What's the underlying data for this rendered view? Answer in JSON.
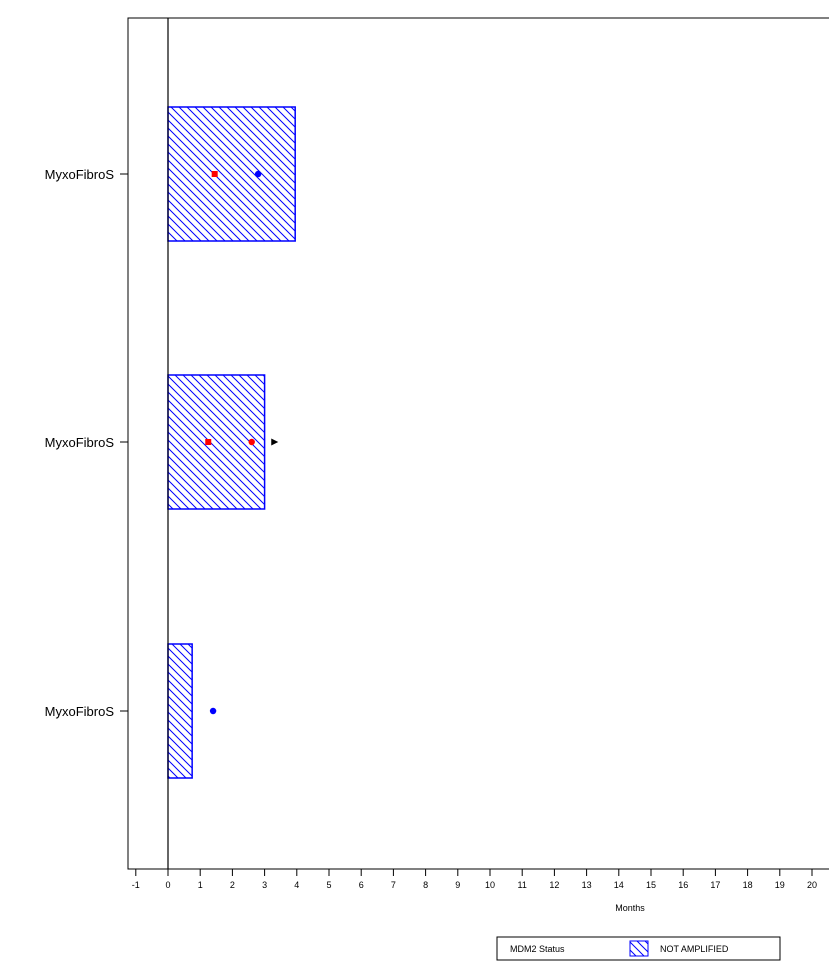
{
  "chart_data": {
    "type": "bar",
    "orientation": "horizontal",
    "xlabel": "Months",
    "ylabel": "",
    "xlim": [
      -1,
      20
    ],
    "xticks": [
      -1,
      0,
      1,
      2,
      3,
      4,
      5,
      6,
      7,
      8,
      9,
      10,
      11,
      12,
      13,
      14,
      15,
      16,
      17,
      18,
      19,
      20
    ],
    "grid": false,
    "categories": [
      "MyxoFibroS",
      "MyxoFibroS",
      "MyxoFibroS"
    ],
    "bars": [
      {
        "label": "MyxoFibroS",
        "start": 0,
        "end": 3.95,
        "status": "NOT AMPLIFIED"
      },
      {
        "label": "MyxoFibroS",
        "start": 0,
        "end": 3.0,
        "status": "NOT AMPLIFIED"
      },
      {
        "label": "MyxoFibroS",
        "start": 0,
        "end": 0.75,
        "status": "NOT AMPLIFIED"
      }
    ],
    "markers": [
      {
        "bar": 0,
        "x": 1.45,
        "shape": "square",
        "color": "#ff0000"
      },
      {
        "bar": 0,
        "x": 2.8,
        "shape": "circle",
        "color": "#0000ff"
      },
      {
        "bar": 1,
        "x": 1.25,
        "shape": "square",
        "color": "#ff0000"
      },
      {
        "bar": 1,
        "x": 2.6,
        "shape": "circle",
        "color": "#ff0000"
      },
      {
        "bar": 1,
        "x": 3.3,
        "shape": "arrow",
        "color": "#000000"
      },
      {
        "bar": 2,
        "x": 1.4,
        "shape": "circle",
        "color": "#0000ff"
      }
    ],
    "legend": {
      "title": "MDM2 Status",
      "entries": [
        {
          "label": "NOT AMPLIFIED",
          "pattern": "hatch",
          "color": "#0000ff"
        }
      ],
      "position": "bottom-right"
    },
    "colors": {
      "bar_stroke": "#0000ff",
      "hatch": "#0000ff",
      "axis": "#000000"
    }
  }
}
